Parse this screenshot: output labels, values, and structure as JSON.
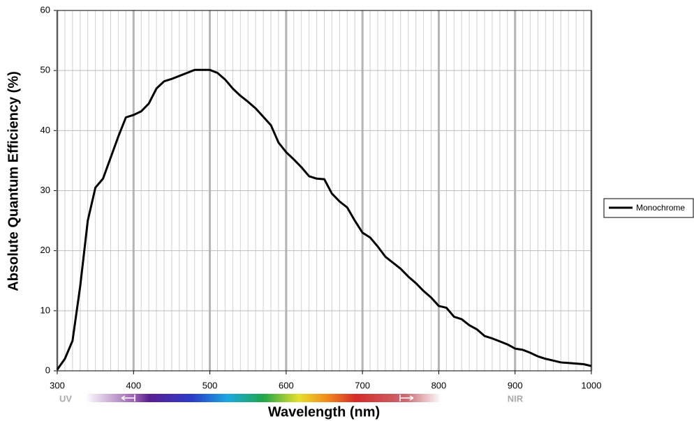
{
  "chart_data": {
    "type": "line",
    "x_label": "Wavelength (nm)",
    "y_label": "Absolute Quantum Efficiency (%)",
    "annotations": [
      "UV",
      "NIR"
    ],
    "x": [
      300,
      310,
      320,
      330,
      340,
      350,
      360,
      370,
      380,
      390,
      400,
      410,
      420,
      430,
      440,
      450,
      460,
      470,
      480,
      490,
      500,
      510,
      520,
      530,
      540,
      550,
      560,
      570,
      580,
      590,
      600,
      610,
      620,
      630,
      640,
      650,
      660,
      670,
      680,
      690,
      700,
      710,
      720,
      730,
      740,
      750,
      760,
      770,
      780,
      790,
      800,
      810,
      820,
      830,
      840,
      850,
      860,
      870,
      880,
      890,
      900,
      910,
      920,
      930,
      940,
      950,
      960,
      970,
      980,
      990,
      1000
    ],
    "series": [
      {
        "name": "Monochrome",
        "color": "#000000",
        "values": [
          0.2,
          2,
          5,
          14,
          25,
          30.5,
          32,
          35.5,
          39,
          42.2,
          42.6,
          43.2,
          44.5,
          47,
          48.2,
          48.6,
          49.1,
          49.6,
          50.1,
          50.1,
          50.1,
          49.6,
          48.5,
          47,
          45.8,
          44.8,
          43.7,
          42.3,
          40.9,
          38,
          36.4,
          35.2,
          33.9,
          32.4,
          32,
          31.9,
          29.5,
          28.2,
          27.2,
          25,
          23,
          22.2,
          20.7,
          19,
          18,
          17,
          15.7,
          14.6,
          13.3,
          12.2,
          10.8,
          10.5,
          9,
          8.6,
          7.6,
          6.9,
          5.8,
          5.4,
          4.9,
          4.4,
          3.7,
          3.5,
          3,
          2.4,
          2,
          1.7,
          1.4,
          1.3,
          1.2,
          1.1,
          0.8
        ]
      }
    ],
    "xlim": [
      300,
      1000
    ],
    "xticks": [
      300,
      400,
      500,
      600,
      700,
      800,
      900,
      1000
    ],
    "ylim": [
      0,
      60
    ],
    "yticks": [
      0,
      10,
      20,
      30,
      40,
      50,
      60
    ],
    "grid": true,
    "legend": "right"
  }
}
